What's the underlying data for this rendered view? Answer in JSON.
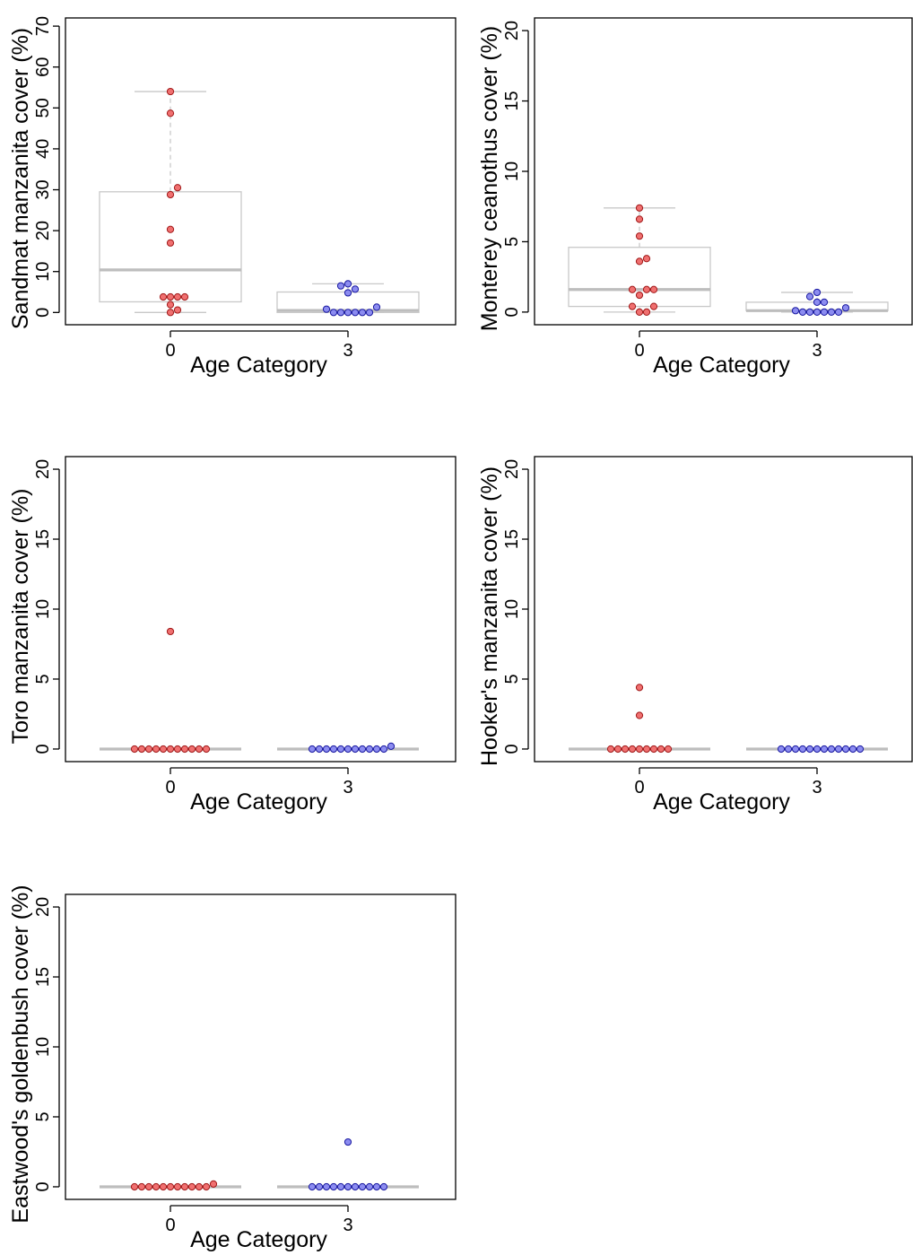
{
  "colors": {
    "group0_fill": "#f07070",
    "group0_stroke": "#a01818",
    "group3_fill": "#8c8cf0",
    "group3_stroke": "#1818a0",
    "box_stroke": "#c8c8c8",
    "median_stroke": "#bdbdbd",
    "axis": "#000000"
  },
  "chart_data": [
    {
      "type": "box",
      "title": "",
      "xlabel": "Age Category",
      "ylabel": "Sandmat manzanita cover (%)",
      "categories": [
        "0",
        "3"
      ],
      "ylim": [
        -3,
        72
      ],
      "yticks": [
        0,
        10,
        20,
        30,
        40,
        50,
        60,
        70
      ],
      "grid": false,
      "boxes": [
        {
          "category": "0",
          "min": 0,
          "q1": 2.6,
          "median": 10.4,
          "q3": 29.5,
          "max": 54
        },
        {
          "category": "3",
          "min": 0,
          "q1": 0,
          "median": 0.5,
          "q3": 5,
          "max": 7
        }
      ],
      "points": [
        {
          "category": "0",
          "values": [
            54,
            48.7,
            30.5,
            28.8,
            20.3,
            17,
            3.8,
            3.8,
            3.8,
            3.8,
            1.9,
            0.6,
            0
          ]
        },
        {
          "category": "3",
          "values": [
            7,
            6.5,
            5.7,
            4.8,
            1.3,
            0.8,
            0,
            0,
            0,
            0,
            0,
            0
          ]
        }
      ]
    },
    {
      "type": "box",
      "title": "",
      "xlabel": "Age Category",
      "ylabel": "Monterey ceanothus cover (%)",
      "categories": [
        "0",
        "3"
      ],
      "ylim": [
        -0.9,
        20.9
      ],
      "yticks": [
        0,
        5,
        10,
        15,
        20
      ],
      "grid": false,
      "boxes": [
        {
          "category": "0",
          "min": 0,
          "q1": 0.4,
          "median": 1.6,
          "q3": 4.6,
          "max": 7.4
        },
        {
          "category": "3",
          "min": 0,
          "q1": 0.1,
          "median": 0.1,
          "q3": 0.7,
          "max": 1.4
        }
      ],
      "points": [
        {
          "category": "0",
          "values": [
            7.4,
            6.6,
            5.4,
            3.8,
            3.6,
            1.6,
            1.6,
            1.6,
            1.2,
            0.4,
            0.4,
            0,
            0
          ]
        },
        {
          "category": "3",
          "values": [
            1.4,
            1.1,
            0.7,
            0.7,
            0.3,
            0.1,
            0,
            0,
            0,
            0,
            0,
            0
          ]
        }
      ]
    },
    {
      "type": "box",
      "title": "",
      "xlabel": "Age Category",
      "ylabel": "Toro manzanita cover (%)",
      "categories": [
        "0",
        "3"
      ],
      "ylim": [
        -0.9,
        20.9
      ],
      "yticks": [
        0,
        5,
        10,
        15,
        20
      ],
      "grid": false,
      "boxes": [
        {
          "category": "0",
          "min": 0,
          "q1": 0,
          "median": 0,
          "q3": 0,
          "max": 0
        },
        {
          "category": "3",
          "min": 0,
          "q1": 0,
          "median": 0,
          "q3": 0,
          "max": 0
        }
      ],
      "points": [
        {
          "category": "0",
          "values": [
            8.4,
            0,
            0,
            0,
            0,
            0,
            0,
            0,
            0,
            0,
            0,
            0
          ]
        },
        {
          "category": "3",
          "values": [
            0,
            0,
            0,
            0,
            0,
            0,
            0,
            0,
            0,
            0,
            0,
            0.2
          ]
        }
      ]
    },
    {
      "type": "box",
      "title": "",
      "xlabel": "Age Category",
      "ylabel": "Hooker's manzanita cover (%)",
      "categories": [
        "0",
        "3"
      ],
      "ylim": [
        -0.9,
        20.9
      ],
      "yticks": [
        0,
        5,
        10,
        15,
        20
      ],
      "grid": false,
      "boxes": [
        {
          "category": "0",
          "min": 0,
          "q1": 0,
          "median": 0,
          "q3": 0,
          "max": 0
        },
        {
          "category": "3",
          "min": 0,
          "q1": 0,
          "median": 0,
          "q3": 0,
          "max": 0
        }
      ],
      "points": [
        {
          "category": "0",
          "values": [
            4.4,
            2.4,
            0,
            0,
            0,
            0,
            0,
            0,
            0,
            0,
            0
          ]
        },
        {
          "category": "3",
          "values": [
            0,
            0,
            0,
            0,
            0,
            0,
            0,
            0,
            0,
            0,
            0,
            0
          ]
        }
      ]
    },
    {
      "type": "box",
      "title": "",
      "xlabel": "Age Category",
      "ylabel": "Eastwood's goldenbush cover (%)",
      "categories": [
        "0",
        "3"
      ],
      "ylim": [
        -0.9,
        20.9
      ],
      "yticks": [
        0,
        5,
        10,
        15,
        20
      ],
      "grid": false,
      "boxes": [
        {
          "category": "0",
          "min": 0,
          "q1": 0,
          "median": 0,
          "q3": 0,
          "max": 0
        },
        {
          "category": "3",
          "min": 0,
          "q1": 0,
          "median": 0,
          "q3": 0,
          "max": 0
        }
      ],
      "points": [
        {
          "category": "0",
          "values": [
            0,
            0,
            0,
            0,
            0,
            0,
            0,
            0,
            0,
            0,
            0,
            0.2
          ]
        },
        {
          "category": "3",
          "values": [
            3.2,
            0,
            0,
            0,
            0,
            0,
            0,
            0,
            0,
            0,
            0,
            0
          ]
        }
      ]
    }
  ]
}
